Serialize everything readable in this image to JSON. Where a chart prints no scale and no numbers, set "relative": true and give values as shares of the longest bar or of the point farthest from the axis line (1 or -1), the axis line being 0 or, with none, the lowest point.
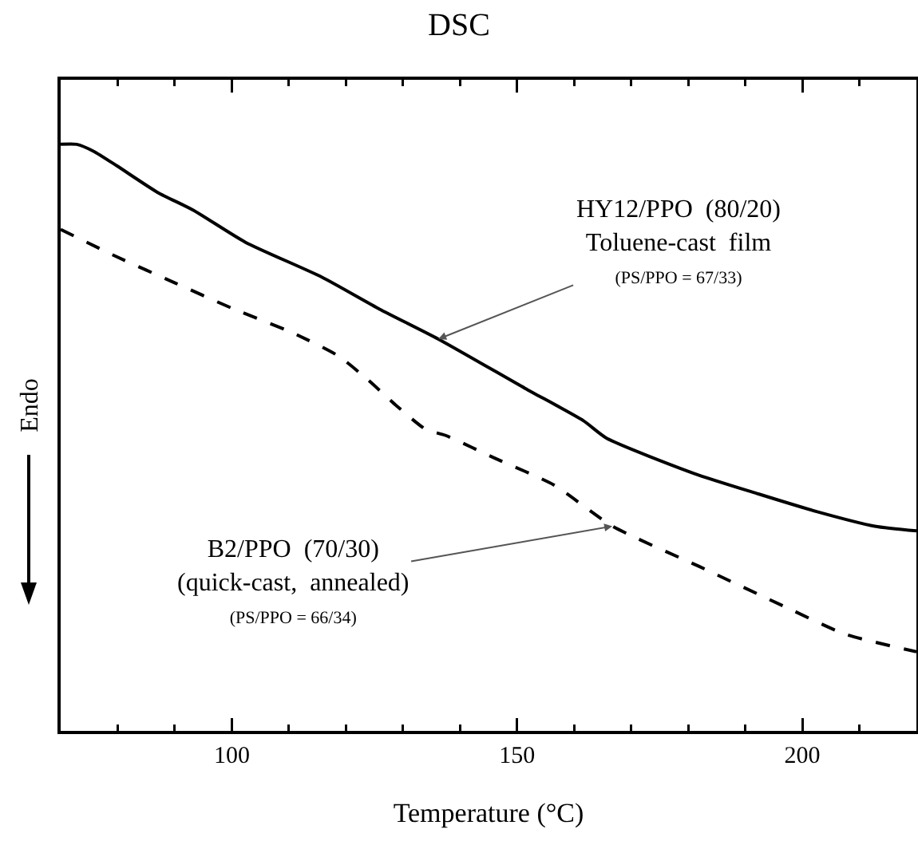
{
  "chart_data": {
    "type": "line",
    "title": "DSC",
    "xlabel": "Temperature (°C)",
    "ylabel": "Endo",
    "relative": true,
    "xlim": [
      70,
      220
    ],
    "xticks": [
      {
        "value": 80,
        "label": null
      },
      {
        "value": 90,
        "label": null
      },
      100,
      {
        "value": 110,
        "label": null
      },
      {
        "value": 120,
        "label": null
      },
      {
        "value": 130,
        "label": null
      },
      {
        "value": 140,
        "label": null
      },
      150,
      {
        "value": 160,
        "label": null
      },
      {
        "value": 170,
        "label": null
      },
      {
        "value": 180,
        "label": null
      },
      {
        "value": 190,
        "label": null
      },
      200,
      {
        "value": 210,
        "label": null
      }
    ],
    "marker": "none",
    "series": [
      {
        "color": "#000000",
        "line_style": "solid",
        "x": [
          70,
          72.8,
          75.8,
          79.9,
          87,
          93.2,
          102.4,
          115.7,
          125.9,
          136.2,
          151.4,
          161.6,
          165.7,
          181,
          192.3,
          202.5,
          212.7,
          220
        ],
        "values": [
          1,
          1,
          0.988,
          0.963,
          0.918,
          0.888,
          0.833,
          0.774,
          0.719,
          0.668,
          0.584,
          0.529,
          0.499,
          0.439,
          0.404,
          0.374,
          0.349,
          0.341
        ]
      },
      {
        "color": "#000000",
        "line_style": "dashed",
        "x": [
          70,
          79.9,
          90.2,
          100.4,
          110.6,
          118.7,
          123.8,
          128.9,
          134,
          137.4,
          146.3,
          156.5,
          166.7,
          182,
          197.3,
          207.5,
          220
        ],
        "values": [
          0.855,
          0.808,
          0.763,
          0.719,
          0.679,
          0.639,
          0.599,
          0.554,
          0.514,
          0.504,
          0.464,
          0.419,
          0.349,
          0.28,
          0.21,
          0.165,
          0.135
        ]
      }
    ],
    "annotations": [
      {
        "text": "HY12/PPO  (80/20)\nToluene-cast  film\n(PS/PPO = 67/33)",
        "x": 136.2,
        "y": 0.668
      },
      {
        "text": "B2/PPO  (70/30)\n(quick-cast,  annealed)\n(PS/PPO = 66/34)",
        "x": 166.7,
        "y": 0.349
      }
    ]
  }
}
